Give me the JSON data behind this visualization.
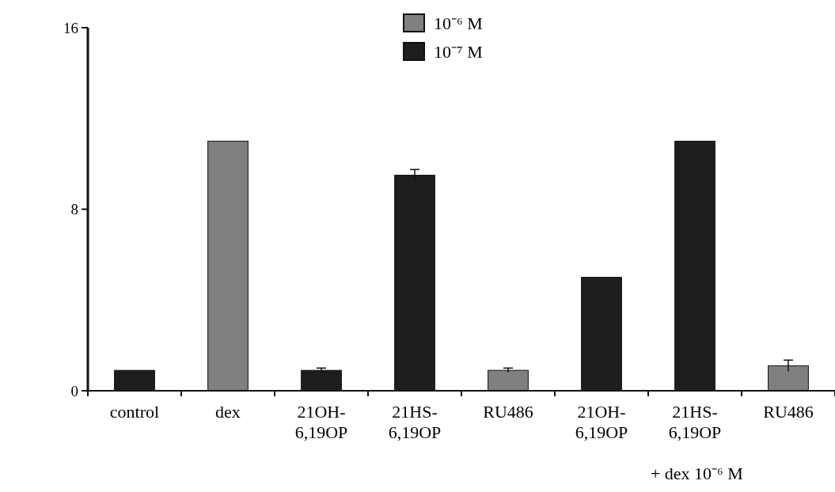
{
  "chart_data": {
    "type": "bar",
    "categories": [
      "control",
      "dex",
      "21OH-\n6,19OP",
      "21HS-\n6,19OP",
      "RU486",
      "21OH-\n6,19OP",
      "21HS-\n6,19OP",
      "RU486"
    ],
    "series": [
      {
        "name": "10⁻⁶ M",
        "color": "#808080",
        "values": [
          null,
          11,
          null,
          null,
          0.9,
          null,
          null,
          1.1
        ],
        "errors": [
          null,
          null,
          null,
          null,
          0.1,
          null,
          null,
          0.25
        ]
      },
      {
        "name": "10⁻⁷ M",
        "color": "#1e1e1e",
        "values": [
          0.9,
          null,
          0.9,
          9.5,
          null,
          5,
          11,
          null
        ],
        "errors": [
          null,
          null,
          0.1,
          0.25,
          null,
          null,
          null,
          null
        ]
      }
    ],
    "ylim": [
      0,
      16
    ],
    "yticks": [
      0,
      8,
      16
    ],
    "legend": "top",
    "grid": false,
    "annotations": [
      "+ dex 10⁻⁶ M"
    ]
  }
}
